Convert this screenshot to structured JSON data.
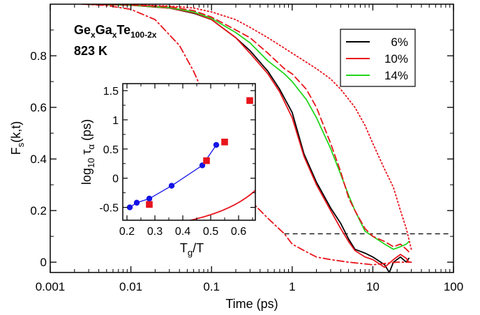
{
  "chart_data": [
    {
      "type": "line",
      "xscale": "log",
      "xlim": [
        0.001,
        100
      ],
      "ylim": [
        -0.04,
        1.0
      ],
      "xlabel": "Time (ps)",
      "ylabel_main": "F",
      "ylabel_sub": "s",
      "ylabel_rest": "(k,t)",
      "xticks": [
        0.001,
        0.01,
        0.1,
        1,
        10,
        100
      ],
      "xtick_labels": [
        "0.001",
        "0.01",
        "0.1",
        "1",
        "10",
        "100"
      ],
      "yticks": [
        0,
        0.2,
        0.4,
        0.6,
        0.8
      ],
      "ytick_labels": [
        "0",
        "0.2",
        "0.4",
        "0.6",
        "0.8"
      ],
      "annotations": {
        "formula": [
          {
            "text": "Ge",
            "sub": false
          },
          {
            "text": "x",
            "sub": true
          },
          {
            "text": "Ga",
            "sub": false
          },
          {
            "text": "x",
            "sub": true
          },
          {
            "text": "Te",
            "sub": false
          },
          {
            "text": "100-2x",
            "sub": true
          }
        ],
        "temperature": "823 K"
      },
      "legend": {
        "placement": "top-right",
        "entries": [
          {
            "label": "6%",
            "color": "#000000"
          },
          {
            "label": "10%",
            "color": "#e8141c"
          },
          {
            "label": "14%",
            "color": "#22d61c"
          }
        ]
      },
      "reference_line": {
        "y": 0.11,
        "x_from": 0.8,
        "x_to": 100,
        "style": "dashed",
        "color": "#000000"
      },
      "series": [
        {
          "color": "#000000",
          "style": "solid",
          "points": [
            [
              0.0025,
              1.0
            ],
            [
              0.01,
              0.996
            ],
            [
              0.03,
              0.985
            ],
            [
              0.06,
              0.965
            ],
            [
              0.1,
              0.94
            ],
            [
              0.2,
              0.87
            ],
            [
              0.3,
              0.82
            ],
            [
              0.5,
              0.74
            ],
            [
              0.7,
              0.67
            ],
            [
              1.0,
              0.58
            ],
            [
              1.4,
              0.42
            ],
            [
              2.0,
              0.31
            ],
            [
              3.0,
              0.21
            ],
            [
              4.0,
              0.15
            ],
            [
              5.0,
              0.09
            ],
            [
              6.0,
              0.05
            ],
            [
              8.0,
              0.035
            ],
            [
              10.0,
              0.02
            ],
            [
              14.0,
              -0.01
            ],
            [
              16.0,
              -0.04
            ],
            [
              18.0,
              0.0
            ],
            [
              22.0,
              0.02
            ],
            [
              26.0,
              0.0
            ],
            [
              28.0,
              0.015
            ]
          ]
        },
        {
          "color": "#e8141c",
          "style": "solid",
          "points": [
            [
              0.0025,
              1.0
            ],
            [
              0.01,
              0.996
            ],
            [
              0.03,
              0.985
            ],
            [
              0.06,
              0.967
            ],
            [
              0.1,
              0.94
            ],
            [
              0.2,
              0.87
            ],
            [
              0.3,
              0.81
            ],
            [
              0.5,
              0.73
            ],
            [
              0.7,
              0.66
            ],
            [
              1.0,
              0.56
            ],
            [
              1.4,
              0.41
            ],
            [
              2.0,
              0.3
            ],
            [
              3.0,
              0.2
            ],
            [
              4.0,
              0.13
            ],
            [
              5.0,
              0.08
            ],
            [
              6.0,
              0.045
            ],
            [
              8.0,
              0.02
            ],
            [
              10.0,
              0.01
            ],
            [
              14.0,
              -0.02
            ],
            [
              18.0,
              0.01
            ],
            [
              22.0,
              0.03
            ],
            [
              26.0,
              0.015
            ],
            [
              28.0,
              0.0
            ]
          ]
        },
        {
          "color": "#22d61c",
          "style": "solid",
          "points": [
            [
              0.0025,
              1.0
            ],
            [
              0.01,
              0.996
            ],
            [
              0.03,
              0.987
            ],
            [
              0.06,
              0.97
            ],
            [
              0.1,
              0.945
            ],
            [
              0.2,
              0.89
            ],
            [
              0.3,
              0.85
            ],
            [
              0.5,
              0.78
            ],
            [
              0.8,
              0.73
            ],
            [
              1.0,
              0.7
            ],
            [
              1.5,
              0.63
            ],
            [
              2.0,
              0.56
            ],
            [
              3.0,
              0.44
            ],
            [
              4.0,
              0.34
            ],
            [
              5.0,
              0.26
            ],
            [
              6.0,
              0.2
            ],
            [
              8.0,
              0.12
            ],
            [
              10.0,
              0.1
            ],
            [
              14.0,
              0.07
            ],
            [
              18.0,
              0.05
            ],
            [
              22.0,
              0.06
            ],
            [
              26.0,
              0.07
            ],
            [
              28.0,
              0.08
            ]
          ]
        },
        {
          "color": "#e8141c",
          "style": "dashed",
          "points": [
            [
              0.0025,
              1.0
            ],
            [
              0.01,
              0.997
            ],
            [
              0.03,
              0.99
            ],
            [
              0.06,
              0.975
            ],
            [
              0.1,
              0.95
            ],
            [
              0.2,
              0.9
            ],
            [
              0.3,
              0.87
            ],
            [
              0.5,
              0.81
            ],
            [
              0.8,
              0.75
            ],
            [
              1.0,
              0.73
            ],
            [
              1.5,
              0.67
            ],
            [
              2.0,
              0.6
            ],
            [
              3.0,
              0.46
            ],
            [
              4.0,
              0.35
            ],
            [
              5.0,
              0.25
            ],
            [
              6.0,
              0.2
            ],
            [
              8.0,
              0.13
            ],
            [
              10.0,
              0.1
            ],
            [
              14.0,
              0.08
            ],
            [
              18.0,
              0.06
            ],
            [
              22.0,
              0.07
            ],
            [
              26.0,
              0.05
            ],
            [
              28.0,
              0.04
            ]
          ]
        },
        {
          "color": "#e8141c",
          "style": "dotted",
          "points": [
            [
              0.0025,
              1.0
            ],
            [
              0.01,
              0.998
            ],
            [
              0.03,
              0.993
            ],
            [
              0.06,
              0.985
            ],
            [
              0.1,
              0.97
            ],
            [
              0.2,
              0.94
            ],
            [
              0.3,
              0.91
            ],
            [
              0.5,
              0.87
            ],
            [
              1.0,
              0.81
            ],
            [
              2.0,
              0.75
            ],
            [
              3.0,
              0.71
            ],
            [
              4.0,
              0.67
            ],
            [
              6.0,
              0.6
            ],
            [
              8.0,
              0.53
            ],
            [
              10.0,
              0.46
            ],
            [
              14.0,
              0.36
            ],
            [
              18.0,
              0.29
            ],
            [
              22.0,
              0.2
            ],
            [
              26.0,
              0.13
            ],
            [
              30.0,
              0.05
            ]
          ]
        },
        {
          "color": "#e8141c",
          "style": "dashdot",
          "points": [
            [
              0.0025,
              1.0
            ],
            [
              0.005,
              0.995
            ],
            [
              0.01,
              0.98
            ],
            [
              0.02,
              0.94
            ],
            [
              0.04,
              0.84
            ],
            [
              0.06,
              0.74
            ],
            [
              0.1,
              0.58
            ],
            [
              0.15,
              0.45
            ],
            [
              0.2,
              0.34
            ],
            [
              0.3,
              0.24
            ],
            [
              0.5,
              0.17
            ],
            [
              0.8,
              0.11
            ],
            [
              1.0,
              0.07
            ],
            [
              1.5,
              0.04
            ],
            [
              2.0,
              0.02
            ],
            [
              3.0,
              0.01
            ],
            [
              5.0,
              0.0
            ],
            [
              10.0,
              -0.01
            ],
            [
              20.0,
              0.0
            ],
            [
              30.0,
              0.0
            ]
          ]
        }
      ]
    },
    {
      "type": "scatter",
      "inset": true,
      "xlim": [
        0.185,
        0.66
      ],
      "ylim": [
        -0.72,
        1.62
      ],
      "xlabel_main": "T",
      "xlabel_sub": "g",
      "xlabel_rest": "/T",
      "ylabel_pre": "log",
      "ylabel_pre_sub": "10",
      "ylabel_tau": "τ",
      "ylabel_tau_sub": "α",
      "ylabel_rest": "(ps)",
      "xticks": [
        0.2,
        0.3,
        0.4,
        0.5,
        0.6
      ],
      "xtick_labels": [
        "0.2",
        "0.3",
        "0.4",
        "0.5",
        "0.6"
      ],
      "yticks": [
        -0.5,
        0,
        0.5,
        1,
        1.5
      ],
      "ytick_labels": [
        "-0.5",
        "0",
        "0.5",
        "1",
        "1.5"
      ],
      "series": [
        {
          "color": "#1414e6",
          "marker": "circle",
          "points": [
            [
              0.21,
              -0.5
            ],
            [
              0.235,
              -0.42
            ],
            [
              0.28,
              -0.35
            ],
            [
              0.36,
              -0.13
            ],
            [
              0.47,
              0.22
            ],
            [
              0.52,
              0.57
            ]
          ]
        },
        {
          "color": "#e8141c",
          "marker": "square",
          "points": [
            [
              0.28,
              -0.45
            ],
            [
              0.485,
              0.3
            ],
            [
              0.55,
              0.62
            ],
            [
              0.64,
              1.33
            ]
          ]
        }
      ],
      "fit_curve": {
        "color": "#e8141c",
        "x_from": 0.2,
        "x_to": 0.66,
        "model": "vft",
        "a": -1.25,
        "b": 0.25,
        "c": 0.9
      }
    }
  ]
}
